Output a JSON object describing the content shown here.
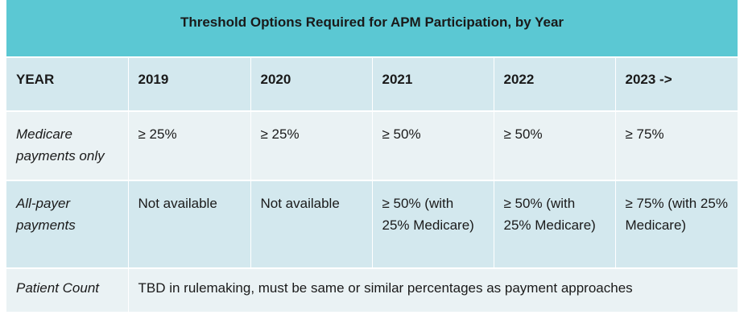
{
  "title": "Threshold Options Required for APM Participation, by Year",
  "header": [
    "YEAR",
    "2019",
    "2020",
    "2021",
    "2022",
    "2023 ->"
  ],
  "rows": [
    {
      "label": "Medicare payments only",
      "cells": [
        "≥ 25%",
        "≥ 25%",
        "≥ 50%",
        "≥ 50%",
        "≥ 75%"
      ]
    },
    {
      "label": "All-payer payments",
      "cells": [
        "Not available",
        "Not available",
        "≥ 50% (with 25% Medicare)",
        "≥ 50% (with 25% Medicare)",
        "≥ 75% (with 25% Medicare)"
      ]
    },
    {
      "label": "Patient Count",
      "merged": "TBD in rulemaking, must be same or similar percentages as payment approaches"
    }
  ],
  "colors": {
    "title_bg": "#5bc8d3",
    "band_dark": "#d3e8ee",
    "band_light": "#eaf2f4"
  }
}
